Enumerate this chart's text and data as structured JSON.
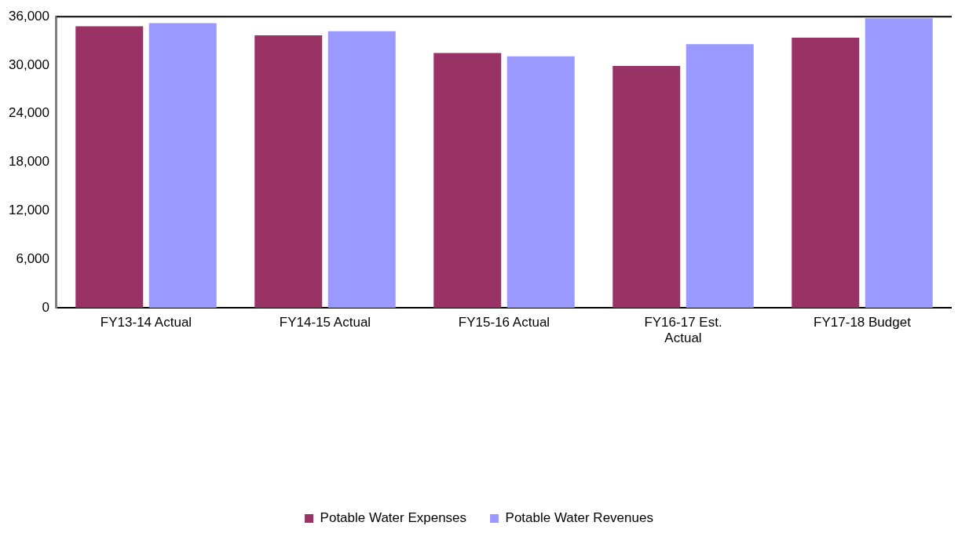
{
  "chart_data": {
    "type": "bar",
    "categories": [
      "FY13-14 Actual",
      "FY14-15 Actual",
      "FY15-16 Actual",
      "FY16-17 Est. Actual",
      "FY17-18 Budget"
    ],
    "series": [
      {
        "name": "Potable Water Expenses",
        "color": "#993366",
        "values": [
          34800,
          33700,
          31500,
          29900,
          33400
        ]
      },
      {
        "name": "Potable Water Revenues",
        "color": "#9999ff",
        "values": [
          35200,
          34200,
          31100,
          32600,
          35800
        ]
      }
    ],
    "ylim": [
      0,
      36000
    ],
    "yticks": [
      0,
      {
        "value": 6000,
        "label": "6,000"
      },
      {
        "value": 12000,
        "label": "12,000"
      },
      {
        "value": 18000,
        "label": "18,000"
      },
      {
        "value": 24000,
        "label": "24,000"
      },
      {
        "value": 30000,
        "label": "30,000"
      },
      {
        "value": 36000,
        "label": "36,000"
      }
    ],
    "grid": false,
    "legend": "bottom"
  }
}
